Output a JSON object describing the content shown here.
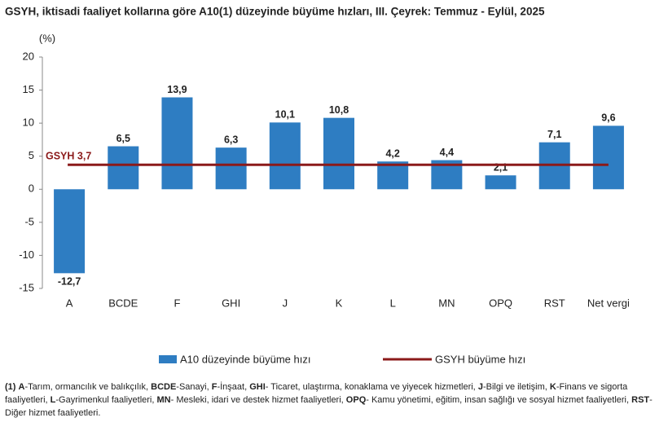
{
  "chart_data": {
    "type": "bar",
    "title": "GSYH, iktisadi faaliyet kollarına göre A10(1) düzeyinde büyüme hızları, III. Çeyrek: Temmuz - Eylül, 2025",
    "y_label": "(%)",
    "categories": [
      "A",
      "BCDE",
      "F",
      "GHI",
      "J",
      "K",
      "L",
      "MN",
      "OPQ",
      "RST",
      "Net vergi"
    ],
    "series": [
      {
        "name": "A10 düzeyinde büyüme hızı",
        "color": "#2e7dc2",
        "values": [
          -12.7,
          6.5,
          13.9,
          6.3,
          10.1,
          10.8,
          4.2,
          4.4,
          2.1,
          7.1,
          9.6
        ],
        "value_labels": [
          "-12,7",
          "6,5",
          "13,9",
          "6,3",
          "10,1",
          "10,8",
          "4,2",
          "4,4",
          "2,1",
          "7,1",
          "9,6"
        ]
      }
    ],
    "reference_line": {
      "name": "GSYH büyüme hızı",
      "value": 3.7,
      "label": "GSYH 3,7",
      "color": "#8b1a1a"
    },
    "ylim": [
      -15,
      20
    ],
    "yticks": [
      -15,
      -10,
      -5,
      0,
      5,
      10,
      15,
      20
    ]
  },
  "footnote": {
    "marker": "(1)",
    "items": [
      {
        "code": "A",
        "text": "-Tarım, ormancılık ve balıkçılık,"
      },
      {
        "code": "BCDE",
        "text": "-Sanayi,"
      },
      {
        "code": "F",
        "text": "-İnşaat,"
      },
      {
        "code": "GHI",
        "text": "- Ticaret, ulaştırma, konaklama ve yiyecek hizmetleri,"
      },
      {
        "code": "J",
        "text": "-Bilgi ve iletişim,"
      },
      {
        "code": "K",
        "text": "-Finans ve sigorta faaliyetleri,"
      },
      {
        "code": "L",
        "text": "-Gayrimenkul faaliyetleri,"
      },
      {
        "code": "MN",
        "text": "- Mesleki, idari ve destek hizmet faaliyetleri,"
      },
      {
        "code": "OPQ",
        "text": "- Kamu yönetimi, eğitim, insan sağlığı ve sosyal hizmet faaliyetleri,"
      },
      {
        "code": "RST",
        "text": "- Diğer hizmet faaliyetleri."
      }
    ]
  }
}
